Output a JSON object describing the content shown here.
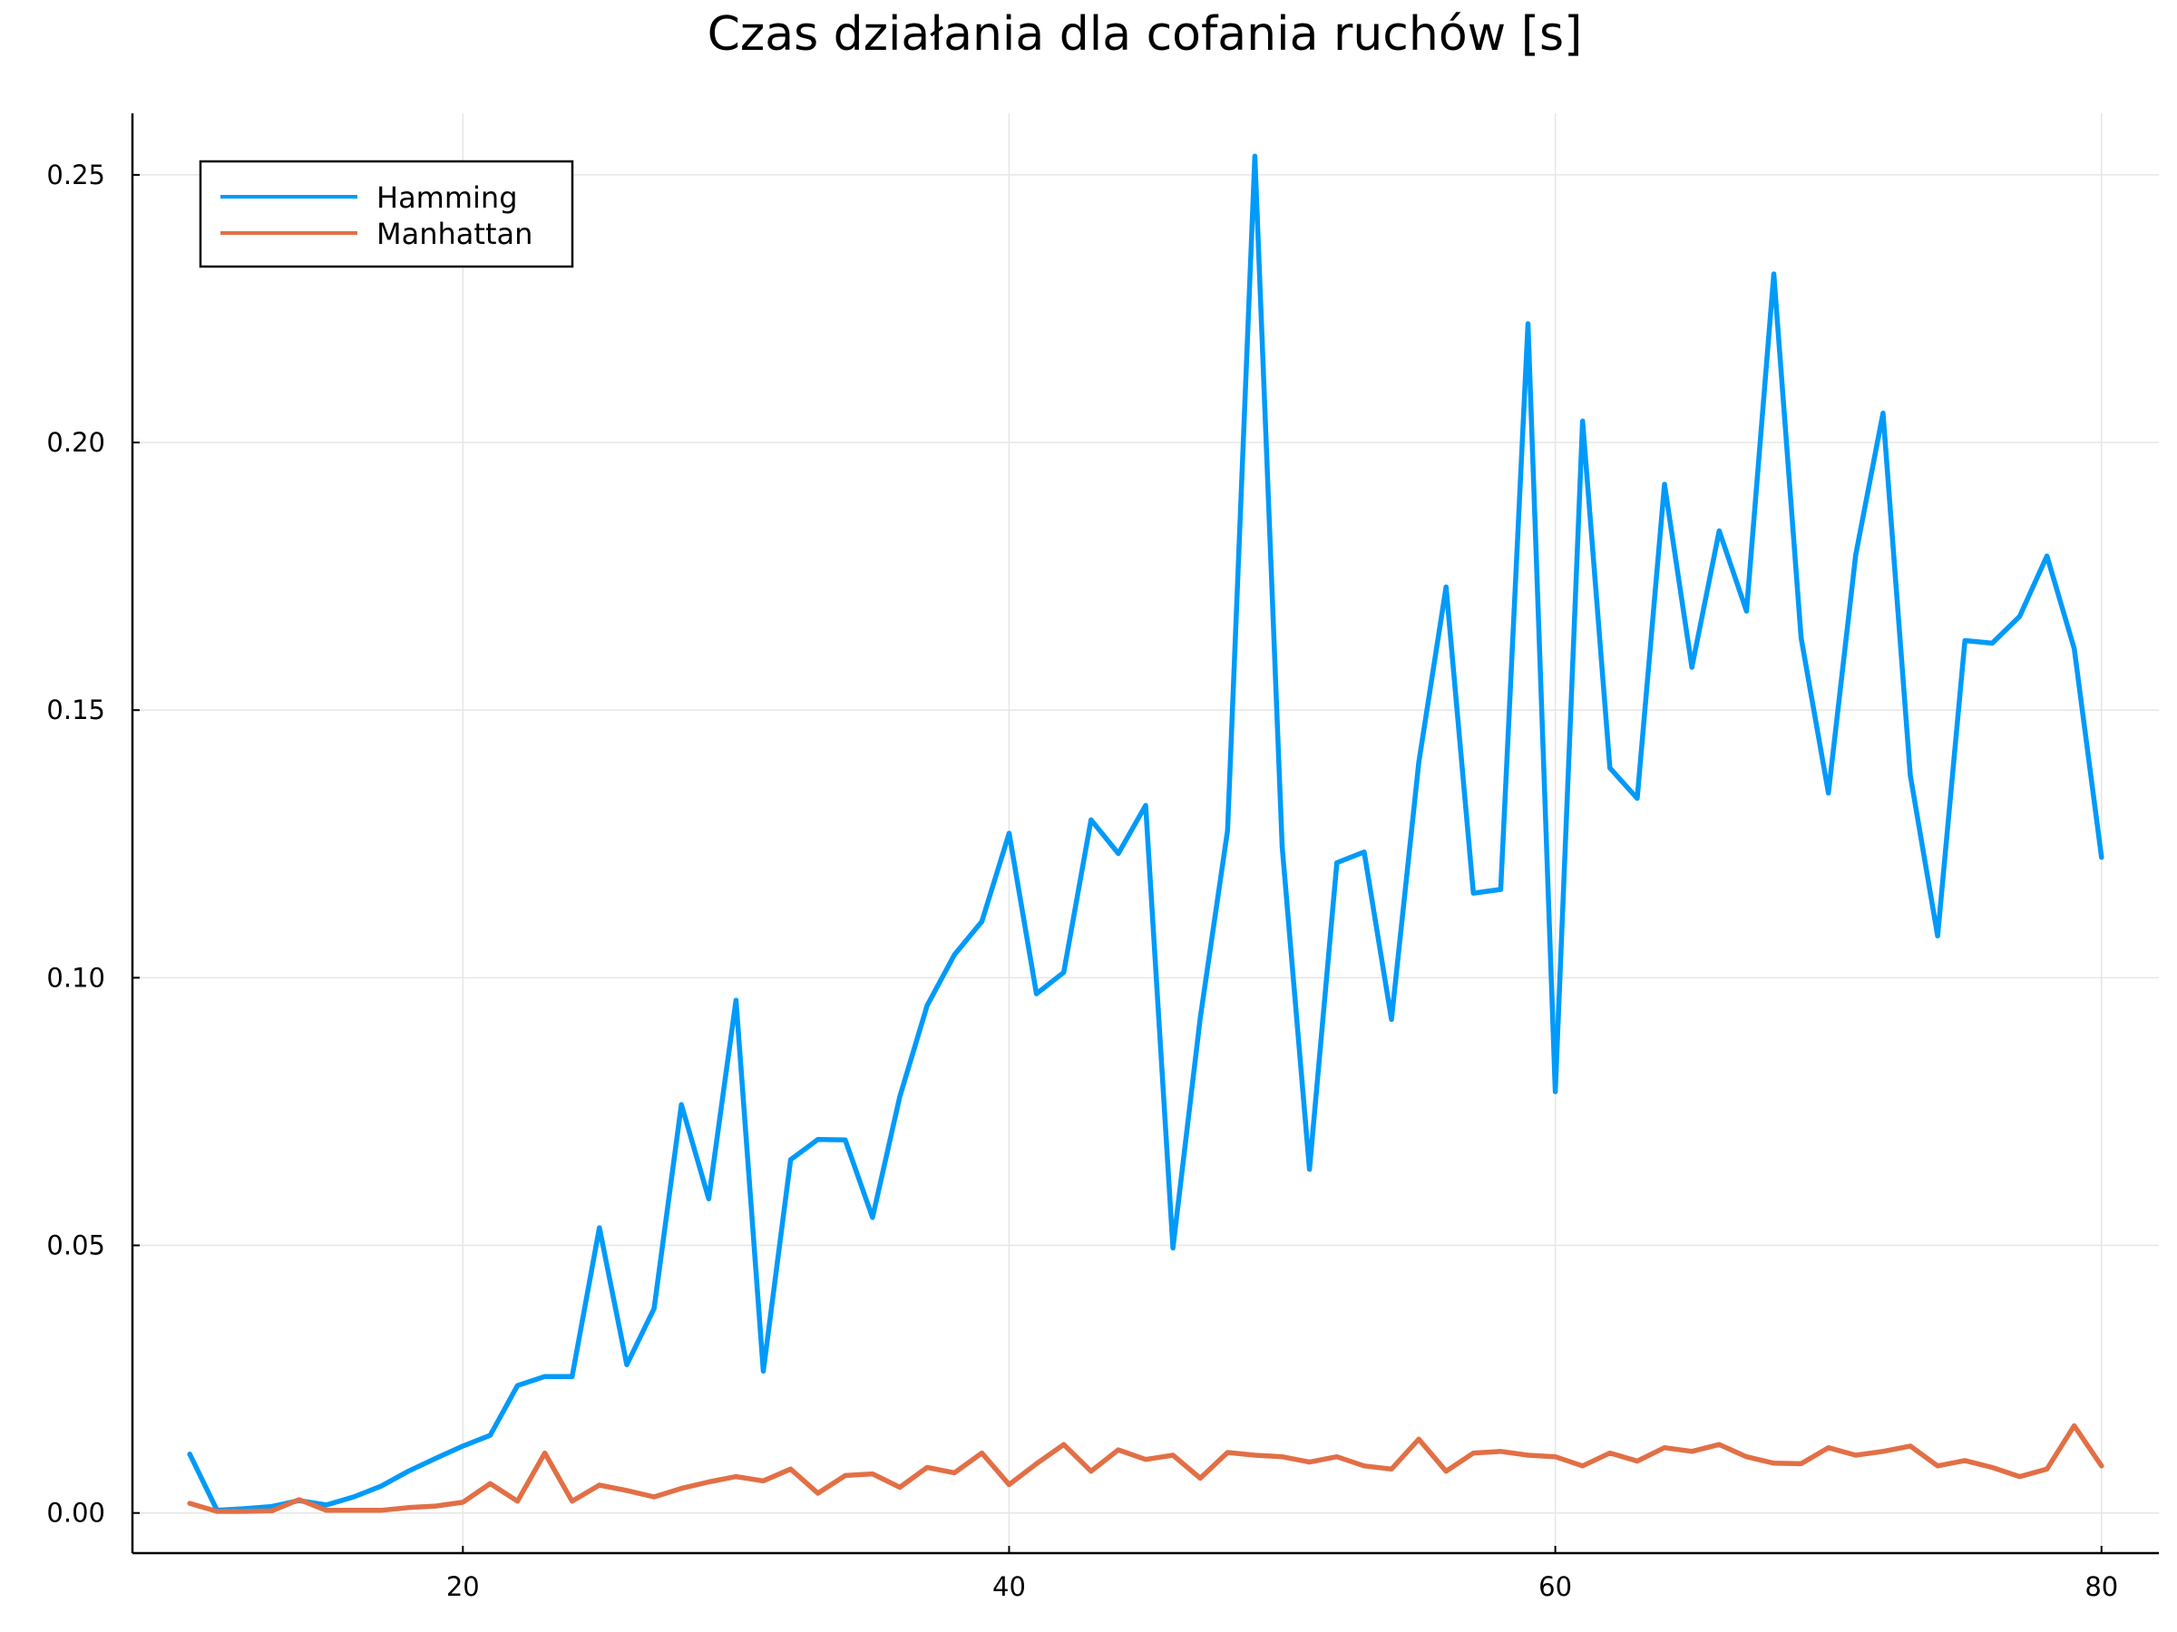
{
  "chart_data": {
    "type": "line",
    "title": "Czas działania dla cofania ruchów [s]",
    "xlabel": "",
    "ylabel": "",
    "xlim": [
      7.9,
      82.1
    ],
    "ylim": [
      -0.0075,
      0.2615
    ],
    "x_ticks": [
      20,
      40,
      60,
      80
    ],
    "x_tick_labels": [
      "20",
      "40",
      "60",
      "80"
    ],
    "y_ticks": [
      0.0,
      0.05,
      0.1,
      0.15,
      0.2,
      0.25
    ],
    "y_tick_labels": [
      "0.00",
      "0.05",
      "0.10",
      "0.15",
      "0.20",
      "0.25"
    ],
    "grid": true,
    "legend_position": "top-left",
    "x": [
      10,
      11,
      12,
      13,
      14,
      15,
      16,
      17,
      18,
      19,
      20,
      21,
      22,
      23,
      24,
      25,
      26,
      27,
      28,
      29,
      30,
      31,
      32,
      33,
      34,
      35,
      36,
      37,
      38,
      39,
      40,
      41,
      42,
      43,
      44,
      45,
      46,
      47,
      48,
      49,
      50,
      51,
      52,
      53,
      54,
      55,
      56,
      57,
      58,
      59,
      60,
      61,
      62,
      63,
      64,
      65,
      66,
      67,
      68,
      69,
      70,
      71,
      72,
      73,
      74,
      75,
      76,
      77,
      78,
      79,
      80
    ],
    "series": [
      {
        "name": "Hamming",
        "color": "#009af9",
        "values": [
          0.011,
          0.0005,
          0.0008,
          0.0012,
          0.0023,
          0.0015,
          0.003,
          0.005,
          0.0078,
          0.0102,
          0.0125,
          0.0145,
          0.0238,
          0.0255,
          0.0255,
          0.0533,
          0.0277,
          0.0382,
          0.0763,
          0.0587,
          0.0958,
          0.0265,
          0.066,
          0.0698,
          0.0697,
          0.0552,
          0.0778,
          0.0948,
          0.1043,
          0.1105,
          0.127,
          0.097,
          0.101,
          0.1295,
          0.1232,
          0.1322,
          0.0495,
          0.0925,
          0.1275,
          0.2535,
          0.1245,
          0.0642,
          0.1215,
          0.1235,
          0.0922,
          0.1402,
          0.173,
          0.1158,
          0.1165,
          0.2222,
          0.0787,
          0.204,
          0.1392,
          0.1335,
          0.1922,
          0.158,
          0.1835,
          0.1685,
          0.2315,
          0.1635,
          0.1345,
          0.179,
          0.2055,
          0.1378,
          0.1078,
          0.163,
          0.1625,
          0.1675,
          0.1788,
          0.1615,
          0.1225
        ]
      },
      {
        "name": "Manhattan",
        "color": "#e26f46",
        "values": [
          0.0018,
          0.0003,
          0.0003,
          0.0004,
          0.0025,
          0.0005,
          0.0005,
          0.0005,
          0.001,
          0.0013,
          0.002,
          0.0055,
          0.0022,
          0.0112,
          0.0022,
          0.0052,
          0.0042,
          0.003,
          0.0046,
          0.0058,
          0.0068,
          0.006,
          0.0082,
          0.0037,
          0.007,
          0.0073,
          0.0048,
          0.0085,
          0.0075,
          0.0112,
          0.0053,
          0.0092,
          0.0128,
          0.0078,
          0.0118,
          0.01,
          0.0108,
          0.0065,
          0.0113,
          0.0108,
          0.0105,
          0.0095,
          0.0105,
          0.0088,
          0.0082,
          0.0138,
          0.0078,
          0.0112,
          0.0115,
          0.0108,
          0.0105,
          0.0088,
          0.0112,
          0.0097,
          0.0122,
          0.0115,
          0.0128,
          0.0105,
          0.0093,
          0.0092,
          0.0122,
          0.0108,
          0.0115,
          0.0125,
          0.0088,
          0.0098,
          0.0085,
          0.0068,
          0.0082,
          0.0163,
          0.0088
        ]
      }
    ]
  }
}
